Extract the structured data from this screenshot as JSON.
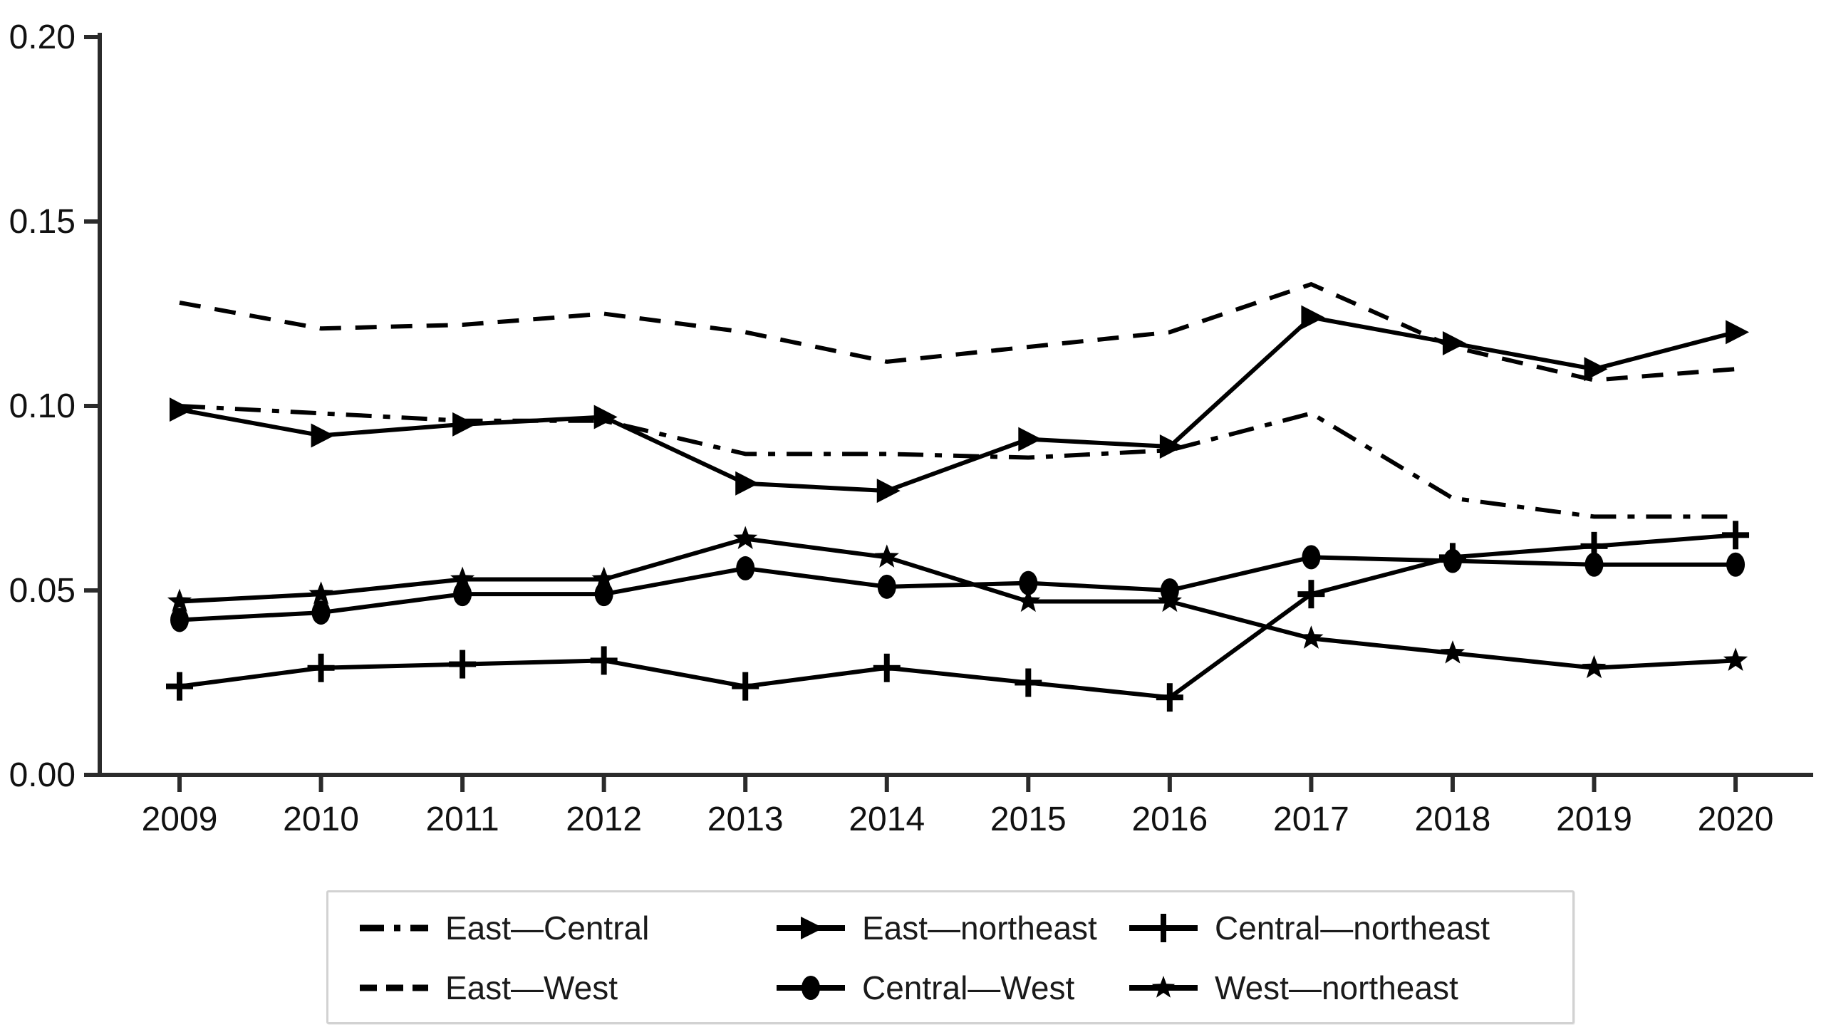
{
  "chart_data": {
    "type": "line",
    "title": "",
    "xlabel": "",
    "ylabel": "",
    "grid": false,
    "legend_position": "bottom",
    "line_color": "#000000",
    "axis_color": "#2b2b2b",
    "ylim": [
      0.0,
      0.2
    ],
    "y_ticks": [
      "0.00",
      "0.05",
      "0.10",
      "0.15",
      "0.20"
    ],
    "y_tick_values": [
      0.0,
      0.05,
      0.1,
      0.15,
      0.2
    ],
    "x": [
      2009,
      2010,
      2011,
      2012,
      2013,
      2014,
      2015,
      2016,
      2017,
      2018,
      2019,
      2020
    ],
    "x_tick_labels": [
      "2009",
      "2010",
      "2011",
      "2012",
      "2013",
      "2014",
      "2015",
      "2016",
      "2017",
      "2018",
      "2019",
      "2020"
    ],
    "series": [
      {
        "name": "East—Central",
        "line_style": "dash-dot",
        "marker": "none",
        "values": [
          0.1,
          0.098,
          0.096,
          0.096,
          0.087,
          0.087,
          0.086,
          0.088,
          0.098,
          0.075,
          0.07,
          0.07
        ]
      },
      {
        "name": "East—West",
        "line_style": "dashed",
        "marker": "none",
        "values": [
          0.128,
          0.121,
          0.122,
          0.125,
          0.12,
          0.112,
          0.116,
          0.12,
          0.133,
          0.116,
          0.107,
          0.11
        ]
      },
      {
        "name": "East—northeast",
        "line_style": "solid",
        "marker": "triangle-right",
        "values": [
          0.099,
          0.092,
          0.095,
          0.097,
          0.079,
          0.077,
          0.091,
          0.089,
          0.124,
          0.117,
          0.11,
          0.12
        ]
      },
      {
        "name": "Central—West",
        "line_style": "solid",
        "marker": "ellipse",
        "values": [
          0.042,
          0.044,
          0.049,
          0.049,
          0.056,
          0.051,
          0.052,
          0.05,
          0.059,
          0.058,
          0.057,
          0.057
        ]
      },
      {
        "name": "Central—northeast",
        "line_style": "solid",
        "marker": "plus",
        "values": [
          0.024,
          0.029,
          0.03,
          0.031,
          0.024,
          0.029,
          0.025,
          0.021,
          0.049,
          0.059,
          0.062,
          0.065
        ]
      },
      {
        "name": "West—northeast",
        "line_style": "solid",
        "marker": "star",
        "values": [
          0.047,
          0.049,
          0.053,
          0.053,
          0.064,
          0.059,
          0.047,
          0.047,
          0.037,
          0.033,
          0.029,
          0.031
        ]
      }
    ]
  }
}
